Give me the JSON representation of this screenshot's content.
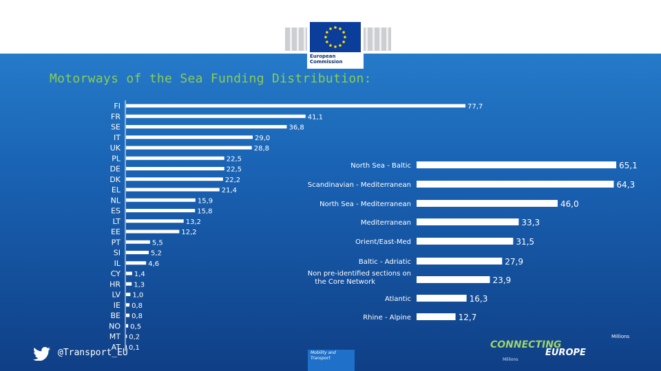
{
  "header": {
    "logo_text": "European\nCommission",
    "title": "Motorways of the Sea Funding Distribution:"
  },
  "footer": {
    "twitter_handle": "@Transport_EU",
    "dg_label": "Mobility and\nTransport",
    "brand_line1": "CONNECTING",
    "brand_line2": "EUROPE",
    "millions_label": "Millions",
    "millions_label_small": "Millions"
  },
  "colors": {
    "bar": "#ffffff",
    "title": "#8ccd52",
    "background_top": "#2a86d3",
    "background_bottom": "#0f3f86"
  },
  "chart_data": [
    {
      "type": "bar",
      "orientation": "horizontal",
      "categories": [
        "FI",
        "FR",
        "SE",
        "IT",
        "UK",
        "PL",
        "DE",
        "DK",
        "EL",
        "NL",
        "ES",
        "LT",
        "EE",
        "PT",
        "SI",
        "IL",
        "CY",
        "HR",
        "LV",
        "IE",
        "BE",
        "NO",
        "MT",
        "AT"
      ],
      "values": [
        77.7,
        41.1,
        36.8,
        29.0,
        28.8,
        22.5,
        22.5,
        22.2,
        21.4,
        15.9,
        15.8,
        13.2,
        12.2,
        5.5,
        5.2,
        4.6,
        1.4,
        1.3,
        1.0,
        0.8,
        0.8,
        0.5,
        0.2,
        0.1
      ],
      "value_labels": [
        "77,7",
        "41,1",
        "36,8",
        "29,0",
        "28,8",
        "22,5",
        "22,5",
        "22,2",
        "21,4",
        "15,9",
        "15,8",
        "13,2",
        "12,2",
        "5,5",
        "5,2",
        "4,6",
        "1,4",
        "1,3",
        "1,0",
        "0,8",
        "0,8",
        "0,5",
        "0,2",
        "0,1"
      ],
      "xlim": [
        0,
        77.7
      ]
    },
    {
      "type": "bar",
      "orientation": "horizontal",
      "categories": [
        "North Sea - Baltic",
        "Scandinavian - Mediterranean",
        "North Sea - Mediterranean",
        "Mediterranean",
        "Orient/East-Med",
        "Baltic - Adriatic",
        "Non pre-identified sections on the Core Network",
        "Atlantic",
        "Rhine - Alpine"
      ],
      "values": [
        65.1,
        64.3,
        46.0,
        33.3,
        31.5,
        27.9,
        23.9,
        16.3,
        12.7
      ],
      "value_labels": [
        "65,1",
        "64,3",
        "46,0",
        "33,3",
        "31,5",
        "27,9",
        "23,9",
        "16,3",
        "12,7"
      ],
      "xlim": [
        0,
        65.1
      ]
    }
  ]
}
